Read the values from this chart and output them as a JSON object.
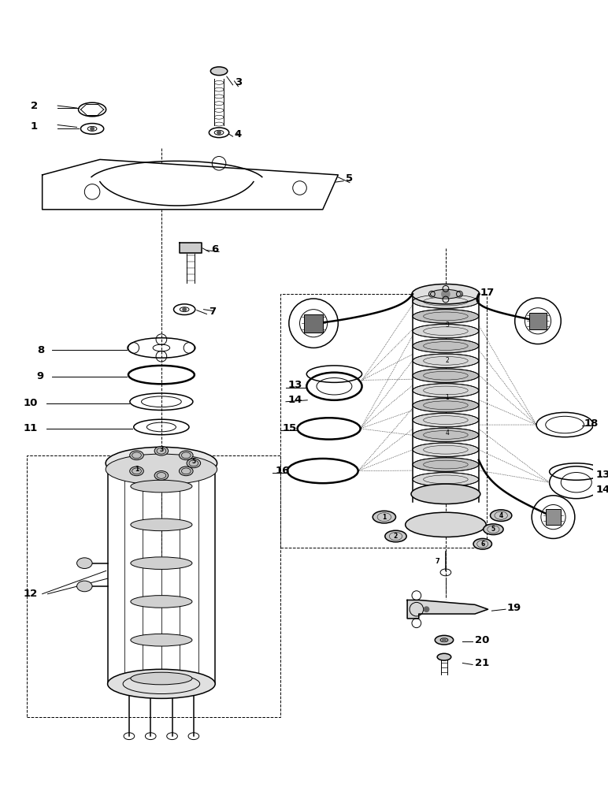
{
  "bg_color": "#ffffff",
  "line_color": "#000000",
  "fig_width": 7.72,
  "fig_height": 10.0,
  "dpi": 100
}
